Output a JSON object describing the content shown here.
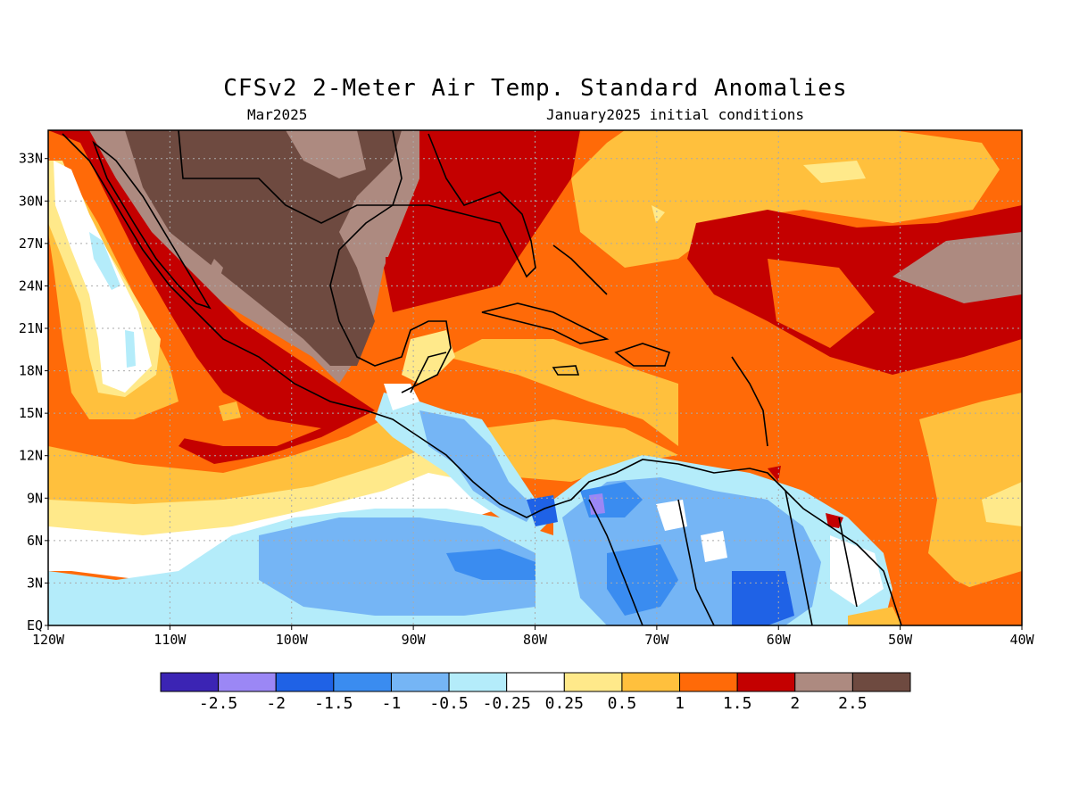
{
  "title": "CFSv2 2-Meter Air Temp. Standard Anomalies",
  "subtitle_left": "Mar2025",
  "subtitle_right": "January2025 initial conditions",
  "map": {
    "lon_range": [
      -120,
      -40
    ],
    "lat_range": [
      0,
      35
    ],
    "lat_ticks": [
      "EQ",
      "3N",
      "6N",
      "9N",
      "12N",
      "15N",
      "18N",
      "21N",
      "24N",
      "27N",
      "30N",
      "33N"
    ],
    "lon_ticks": [
      "120W",
      "110W",
      "100W",
      "90W",
      "80W",
      "70W",
      "60W",
      "50W",
      "40W"
    ],
    "gridlines": "dotted"
  },
  "colorbar": {
    "colors": [
      "#3b24b4",
      "#9b87f5",
      "#1f62e6",
      "#3a8cf0",
      "#75b5f5",
      "#b4ecfa",
      "#ffffff",
      "#ffe98a",
      "#ffc03d",
      "#ff6a08",
      "#c40000",
      "#ad8a80",
      "#6e4a40"
    ],
    "labels": [
      "-2.5",
      "-2",
      "-1.5",
      "-1",
      "-0.5",
      "-0.25",
      "0.25",
      "0.5",
      "1",
      "1.5",
      "2",
      "2.5"
    ]
  }
}
